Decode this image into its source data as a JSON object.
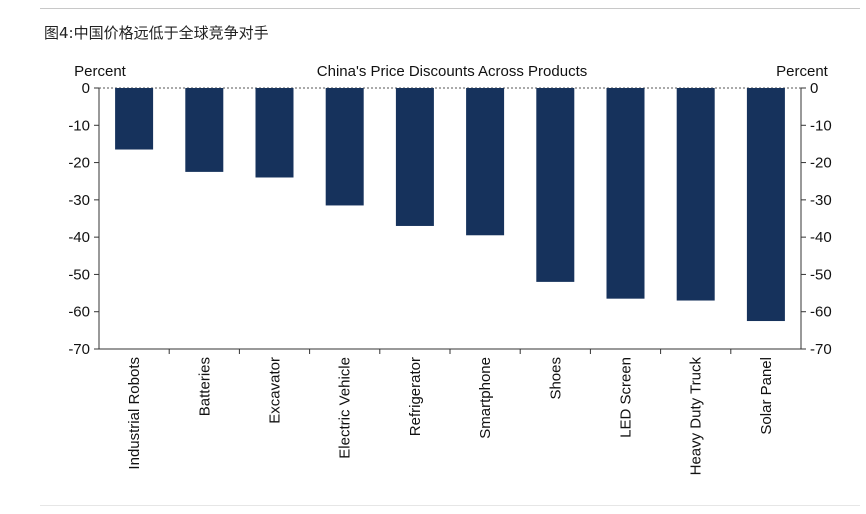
{
  "caption": "图4:中国价格远低于全球竞争对手",
  "colors": {
    "bar": "#16325c",
    "axis": "#333333"
  },
  "chart_data": {
    "type": "bar",
    "title": "China's Price Discounts Across Products",
    "ylabel_left": "Percent",
    "ylabel_right": "Percent",
    "ylim": [
      -70,
      0
    ],
    "yticks": [
      0,
      -10,
      -20,
      -30,
      -40,
      -50,
      -60,
      -70
    ],
    "ytick_labels": [
      "0",
      "-10",
      "-20",
      "-30",
      "-40",
      "-50",
      "-60",
      "-70"
    ],
    "categories": [
      "Industrial Robots",
      "Batteries",
      "Excavator",
      "Electric Vehicle",
      "Refrigerator",
      "Smartphone",
      "Shoes",
      "LED Screen",
      "Heavy Duty Truck",
      "Solar Panel"
    ],
    "values": [
      -16.5,
      -22.5,
      -24,
      -31.5,
      -37,
      -39.5,
      -52,
      -56.5,
      -57,
      -62.5
    ]
  }
}
